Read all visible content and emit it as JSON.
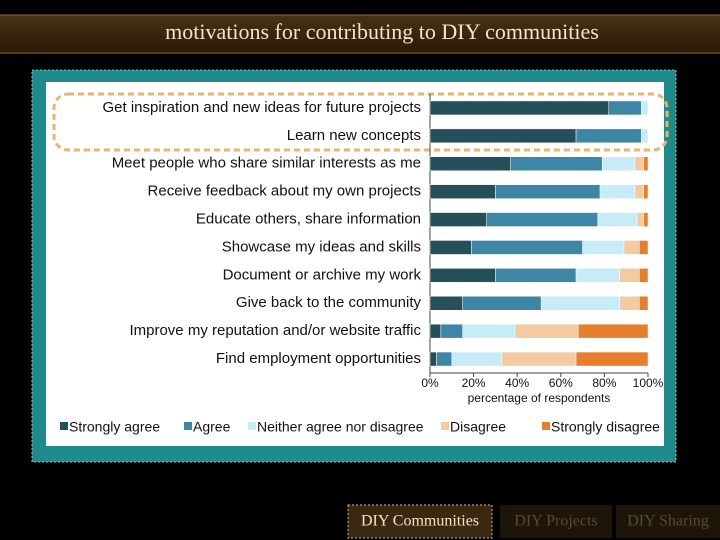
{
  "header": {
    "title": "motivations for contributing to DIY communities"
  },
  "chart_data": {
    "type": "stacked-barh",
    "xlabel": "percentage of respondents",
    "categories": [
      "Get inspiration and new ideas for future projects",
      "Learn new concepts",
      "Meet people who share similar interests as me",
      "Receive feedback about my own projects",
      "Educate others, share information",
      "Showcase my ideas and skills",
      "Document or archive my work",
      "Give back to the community",
      "Improve my reputation and/or website traffic",
      "Find employment opportunities"
    ],
    "series": [
      {
        "name": "Strongly agree",
        "color": "#264f5c",
        "values": [
          82,
          67,
          37,
          30,
          26,
          19,
          30,
          15,
          5,
          3
        ]
      },
      {
        "name": "Agree",
        "color": "#3d86a6",
        "values": [
          15,
          30,
          42,
          48,
          51,
          51,
          37,
          36,
          10,
          7
        ]
      },
      {
        "name": "Neither agree nor disagree",
        "color": "#c8ecf7",
        "values": [
          3,
          3,
          15,
          16,
          18,
          19,
          20,
          36,
          24,
          23
        ]
      },
      {
        "name": "Disagree",
        "color": "#f2cba0",
        "values": [
          0,
          0,
          4,
          4,
          3,
          7,
          9,
          9,
          29,
          34
        ]
      },
      {
        "name": "Strongly disagree",
        "color": "#e57f2c",
        "values": [
          0,
          0,
          2,
          2,
          2,
          4,
          4,
          4,
          32,
          33
        ]
      }
    ],
    "xlim": [
      0,
      100
    ],
    "xticks": [
      {
        "value": 0,
        "label": "0%"
      },
      {
        "value": 20,
        "label": "20%"
      },
      {
        "value": 40,
        "label": "40%"
      },
      {
        "value": 60,
        "label": "60%"
      },
      {
        "value": 80,
        "label": "80%"
      },
      {
        "value": 100,
        "label": "100%"
      }
    ]
  },
  "nav": {
    "tabs": [
      "DIY Communities",
      "DIY Projects",
      "DIY Sharing"
    ]
  }
}
